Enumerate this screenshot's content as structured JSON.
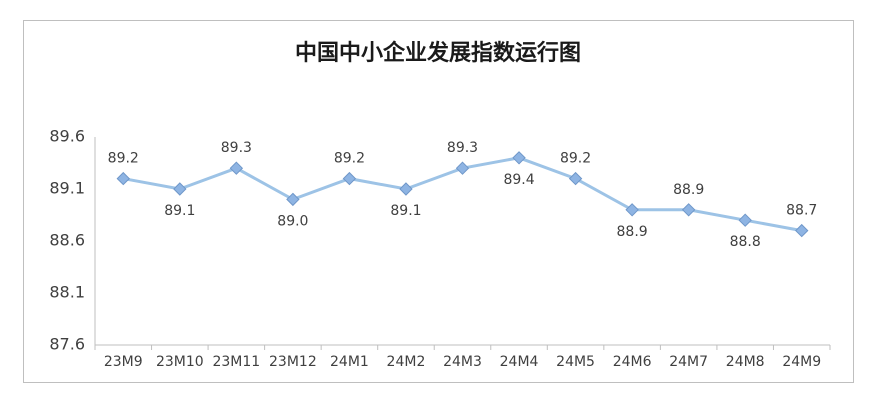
{
  "chart_data": {
    "type": "line",
    "title": "中国中小企业发展指数运行图",
    "categories": [
      "23M9",
      "23M10",
      "23M11",
      "23M12",
      "24M1",
      "24M2",
      "24M3",
      "24M4",
      "24M5",
      "24M6",
      "24M7",
      "24M8",
      "24M9"
    ],
    "values": [
      89.2,
      89.1,
      89.3,
      89.0,
      89.2,
      89.1,
      89.3,
      89.4,
      89.2,
      88.9,
      88.9,
      88.8,
      88.7
    ],
    "value_labels": [
      "89.2",
      "89.1",
      "89.3",
      "89.0",
      "89.2",
      "89.1",
      "89.3",
      "89.4",
      "89.2",
      "88.9",
      "88.9",
      "88.8",
      "88.7"
    ],
    "color": "#9dc3e6",
    "ylim": [
      87.6,
      89.6
    ],
    "yticks": [
      87.6,
      88.1,
      88.6,
      89.1,
      89.6
    ],
    "grid": false
  }
}
